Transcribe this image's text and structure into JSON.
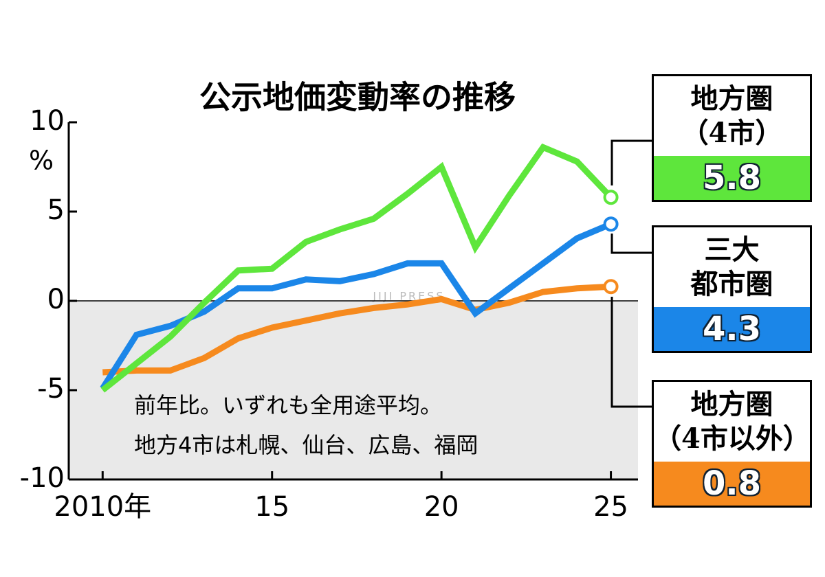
{
  "chart_data": {
    "type": "line",
    "title": "公示地価変動率の推移",
    "y_unit": "%",
    "note": [
      "前年比。いずれも全用途平均。",
      "地方4市は札幌、仙台、広島、福岡"
    ],
    "watermark": "JIJI PRESS",
    "x": [
      2010,
      2011,
      2012,
      2013,
      2014,
      2015,
      2016,
      2017,
      2018,
      2019,
      2020,
      2021,
      2022,
      2023,
      2024,
      2025
    ],
    "xlim": [
      2009,
      2025.8
    ],
    "xticks": [
      {
        "value": 2010,
        "label": "2010年"
      },
      {
        "value": 2015,
        "label": "15"
      },
      {
        "value": 2020,
        "label": "20"
      },
      {
        "value": 2025,
        "label": "25"
      }
    ],
    "ylim": [
      -10,
      10
    ],
    "yticks": [
      10,
      5,
      0,
      -5,
      -10
    ],
    "series": [
      {
        "name": "地方圏\n（4市）",
        "color": "#5ee63c",
        "values": [
          -5.0,
          -3.5,
          -2.0,
          -0.1,
          1.7,
          1.8,
          3.3,
          4.0,
          4.6,
          6.0,
          7.5,
          3.0,
          5.9,
          8.6,
          7.8,
          5.8
        ]
      },
      {
        "name": "三大\n都市圏",
        "color": "#1b86e8",
        "values": [
          -4.9,
          -1.9,
          -1.4,
          -0.6,
          0.7,
          0.7,
          1.2,
          1.1,
          1.5,
          2.1,
          2.1,
          -0.7,
          0.7,
          2.1,
          3.5,
          4.3
        ]
      },
      {
        "name": "地方圏\n（4市以外）",
        "color": "#f68a1e",
        "values": [
          -4.0,
          -3.9,
          -3.9,
          -3.2,
          -2.1,
          -1.5,
          -1.1,
          -0.7,
          -0.4,
          -0.2,
          0.1,
          -0.5,
          -0.1,
          0.5,
          0.7,
          0.8
        ]
      }
    ]
  }
}
